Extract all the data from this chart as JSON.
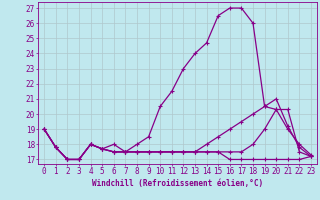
{
  "xlabel": "Windchill (Refroidissement éolien,°C)",
  "x_values": [
    0,
    1,
    2,
    3,
    4,
    5,
    6,
    7,
    8,
    9,
    10,
    11,
    12,
    13,
    14,
    15,
    16,
    17,
    18,
    19,
    20,
    21,
    22,
    23
  ],
  "line1": [
    19,
    17.8,
    17,
    17,
    18,
    17.7,
    17.5,
    17.5,
    17.5,
    17.5,
    17.5,
    17.5,
    17.5,
    17.5,
    17.5,
    17.5,
    17,
    17,
    17,
    17,
    17,
    17,
    17,
    17.2
  ],
  "line2": [
    19,
    17.8,
    17,
    17,
    18,
    17.7,
    18,
    17.5,
    18,
    18.5,
    20.5,
    21.5,
    23,
    24,
    24.7,
    26.5,
    27,
    27,
    26,
    20.5,
    20.3,
    19,
    18,
    17.3
  ],
  "line3": [
    19,
    17.8,
    17,
    17,
    18,
    17.7,
    17.5,
    17.5,
    17.5,
    17.5,
    17.5,
    17.5,
    17.5,
    17.5,
    18,
    18.5,
    19,
    19.5,
    20,
    20.5,
    21,
    19.2,
    17.8,
    17.2
  ],
  "line4": [
    19,
    17.8,
    17,
    17,
    18,
    17.7,
    17.5,
    17.5,
    17.5,
    17.5,
    17.5,
    17.5,
    17.5,
    17.5,
    17.5,
    17.5,
    17.5,
    17.5,
    18,
    19,
    20.3,
    20.3,
    17.5,
    17.2
  ],
  "ylim": [
    16.7,
    27.4
  ],
  "xlim": [
    -0.5,
    23.5
  ],
  "bg_color": "#c0e8ee",
  "line_color": "#880088",
  "grid_color": "#b0c8cc",
  "marker": "+",
  "linewidth": 0.9,
  "markersize": 3,
  "fontsize_axis": 5.5,
  "fontsize_xlabel": 5.5
}
